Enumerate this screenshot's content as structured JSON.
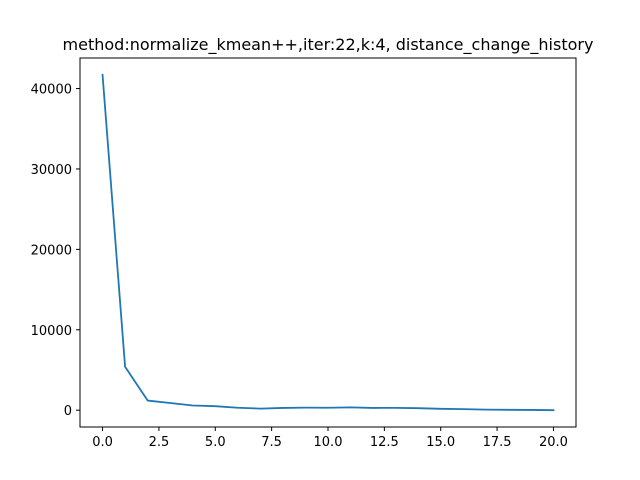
{
  "chart_data": {
    "type": "line",
    "title": "method:normalize_kmean++,iter:22,k:4, distance_change_history",
    "xlabel": "",
    "ylabel": "",
    "xlim": [
      -1.0,
      21.0
    ],
    "ylim": [
      -2090,
      43800
    ],
    "xticks": [
      0.0,
      2.5,
      5.0,
      7.5,
      10.0,
      12.5,
      15.0,
      17.5,
      20.0
    ],
    "xtick_labels": [
      "0.0",
      "2.5",
      "5.0",
      "7.5",
      "10.0",
      "12.5",
      "15.0",
      "17.5",
      "20.0"
    ],
    "yticks": [
      0,
      10000,
      20000,
      30000,
      40000
    ],
    "ytick_labels": [
      "0",
      "10000",
      "20000",
      "30000",
      "40000"
    ],
    "grid": false,
    "series": [
      {
        "color": "#1f77b4",
        "x": [
          0,
          1,
          2,
          3,
          4,
          5,
          6,
          7,
          8,
          9,
          10,
          11,
          12,
          13,
          14,
          15,
          16,
          17,
          18,
          19,
          20
        ],
        "y": [
          41700,
          5400,
          1200,
          900,
          580,
          500,
          300,
          200,
          280,
          320,
          300,
          350,
          280,
          290,
          250,
          170,
          130,
          70,
          50,
          30,
          0
        ]
      }
    ]
  }
}
